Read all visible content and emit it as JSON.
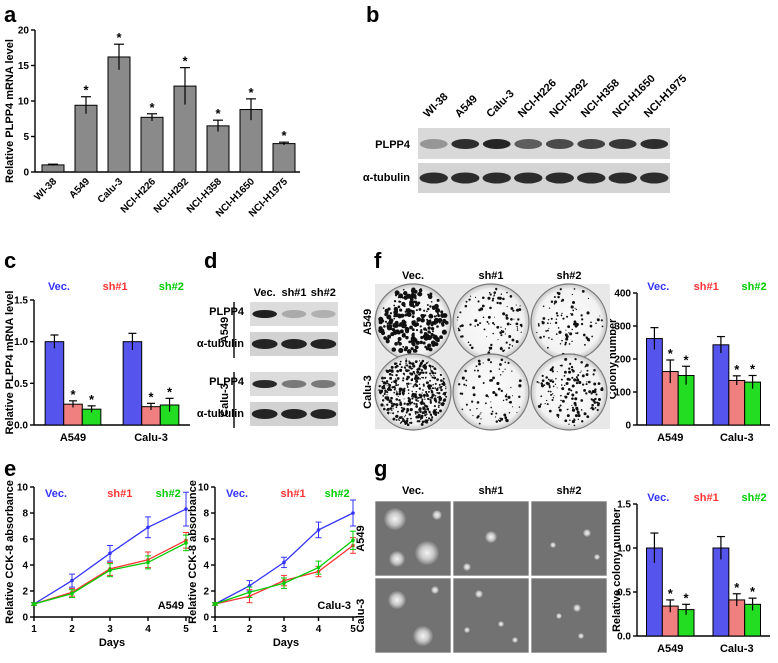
{
  "panel_labels": {
    "a": "a",
    "b": "b",
    "c": "c",
    "d": "d",
    "e": "e",
    "f": "f",
    "g": "g"
  },
  "colors": {
    "vec": "#3333ff",
    "sh1": "#ff3333",
    "sh2": "#00cc00",
    "bar_gray": "#8a8a8a",
    "bar_blue": "#5555ee",
    "bar_red": "#f08080",
    "bar_green": "#22dd22"
  },
  "chart_data": [
    {
      "id": "a",
      "type": "bar",
      "categories": [
        "WI-38",
        "A549",
        "Calu-3",
        "NCI-H226",
        "NCI-H292",
        "NCI-H358",
        "NCI-H1650",
        "NCI-H1975"
      ],
      "values": [
        1.0,
        9.4,
        16.2,
        7.7,
        12.1,
        6.5,
        8.8,
        4.0
      ],
      "errors": [
        0.1,
        1.2,
        1.8,
        0.5,
        2.6,
        0.8,
        1.5,
        0.2
      ],
      "sig": [
        "",
        "*",
        "*",
        "*",
        "*",
        "*",
        "*",
        "*"
      ],
      "ylabel": "Relative PLPP4 mRNA level",
      "ylim": [
        0,
        20
      ],
      "yticks": [
        "0",
        "5",
        "10",
        "15",
        "20"
      ]
    },
    {
      "id": "c",
      "type": "bar",
      "groups": [
        "A549",
        "Calu-3"
      ],
      "legend": [
        "Vec.",
        "sh#1",
        "sh#2"
      ],
      "series": [
        {
          "name": "Vec.",
          "values": [
            1.0,
            1.0
          ],
          "errors": [
            0.08,
            0.1
          ],
          "sig": [
            "",
            ""
          ]
        },
        {
          "name": "sh#1",
          "values": [
            0.25,
            0.22
          ],
          "errors": [
            0.04,
            0.04
          ],
          "sig": [
            "*",
            "*"
          ]
        },
        {
          "name": "sh#2",
          "values": [
            0.19,
            0.24
          ],
          "errors": [
            0.04,
            0.08
          ],
          "sig": [
            "*",
            "*"
          ]
        }
      ],
      "ylabel": "Relative PLPP4 mRNA level",
      "ylim": [
        0,
        1.5
      ],
      "yticks": [
        "0.0",
        "0.5",
        "1.0",
        "1.5"
      ]
    },
    {
      "id": "e1",
      "type": "line",
      "title": "A549",
      "legend": [
        "Vec.",
        "sh#1",
        "sh#2"
      ],
      "x": [
        1,
        2,
        3,
        4,
        5
      ],
      "series": [
        {
          "name": "Vec.",
          "values": [
            1.0,
            2.8,
            4.9,
            6.9,
            8.3
          ],
          "errors": [
            0.1,
            0.5,
            0.6,
            0.8,
            1.3
          ]
        },
        {
          "name": "sh#1",
          "values": [
            1.0,
            1.9,
            3.7,
            4.4,
            5.9
          ],
          "errors": [
            0.1,
            0.3,
            0.5,
            0.6,
            0.6
          ]
        },
        {
          "name": "sh#2",
          "values": [
            1.0,
            1.8,
            3.6,
            4.2,
            5.7
          ],
          "errors": [
            0.1,
            0.3,
            0.5,
            0.5,
            0.6
          ]
        }
      ],
      "xlabel": "Days",
      "ylabel": "Relative CCK-8 absorbance",
      "ylim": [
        0,
        10
      ],
      "yticks": [
        "0",
        "2",
        "4",
        "6",
        "8",
        "10"
      ],
      "xticks": [
        "1",
        "2",
        "3",
        "4",
        "5"
      ]
    },
    {
      "id": "e2",
      "type": "line",
      "title": "Calu-3",
      "legend": [
        "Vec.",
        "sh#1",
        "sh#2"
      ],
      "x": [
        1,
        2,
        3,
        4,
        5
      ],
      "series": [
        {
          "name": "Vec.",
          "values": [
            1.0,
            2.4,
            4.2,
            6.7,
            8.0
          ],
          "errors": [
            0.1,
            0.4,
            0.4,
            0.6,
            1.0
          ]
        },
        {
          "name": "sh#1",
          "values": [
            1.0,
            1.6,
            2.8,
            3.5,
            5.5
          ],
          "errors": [
            0.1,
            0.5,
            0.4,
            0.4,
            0.6
          ]
        },
        {
          "name": "sh#2",
          "values": [
            1.0,
            1.9,
            2.6,
            3.8,
            5.9
          ],
          "errors": [
            0.1,
            0.4,
            0.4,
            0.5,
            0.7
          ]
        }
      ],
      "xlabel": "Days",
      "ylabel": "Relative CCK-8 absorbance",
      "ylim": [
        0,
        10
      ],
      "yticks": [
        "0",
        "2",
        "4",
        "6",
        "8",
        "10"
      ],
      "xticks": [
        "1",
        "2",
        "3",
        "4",
        "5"
      ]
    },
    {
      "id": "f",
      "type": "bar",
      "groups": [
        "A549",
        "Calu-3"
      ],
      "legend": [
        "Vec.",
        "sh#1",
        "sh#2"
      ],
      "series": [
        {
          "name": "Vec.",
          "values": [
            262,
            243
          ],
          "errors": [
            33,
            25
          ],
          "sig": [
            "",
            ""
          ]
        },
        {
          "name": "sh#1",
          "values": [
            162,
            135
          ],
          "errors": [
            35,
            14
          ],
          "sig": [
            "*",
            "*"
          ]
        },
        {
          "name": "sh#2",
          "values": [
            150,
            130
          ],
          "errors": [
            28,
            20
          ],
          "sig": [
            "*",
            "*"
          ]
        }
      ],
      "ylabel": "Colony number",
      "ylim": [
        0,
        400
      ],
      "yticks": [
        "0",
        "100",
        "200",
        "300",
        "400"
      ]
    },
    {
      "id": "g",
      "type": "bar",
      "groups": [
        "A549",
        "Calu-3"
      ],
      "legend": [
        "Vec.",
        "sh#1",
        "sh#2"
      ],
      "series": [
        {
          "name": "Vec.",
          "values": [
            1.0,
            1.0
          ],
          "errors": [
            0.17,
            0.13
          ],
          "sig": [
            "",
            ""
          ]
        },
        {
          "name": "sh#1",
          "values": [
            0.34,
            0.41
          ],
          "errors": [
            0.07,
            0.07
          ],
          "sig": [
            "*",
            "*"
          ]
        },
        {
          "name": "sh#2",
          "values": [
            0.3,
            0.36
          ],
          "errors": [
            0.06,
            0.07
          ],
          "sig": [
            "*",
            "*"
          ]
        }
      ],
      "ylabel": "Relative colony number",
      "ylim": [
        0,
        1.5
      ],
      "yticks": [
        "0.0",
        "0.5",
        "1.0",
        "1.5"
      ]
    }
  ],
  "blot_b": {
    "lanes": [
      "WI-38",
      "A549",
      "Calu-3",
      "NCI-H226",
      "NCI-H292",
      "NCI-H358",
      "NCI-H1650",
      "NCI-H1975"
    ],
    "rows": [
      "PLPP4",
      "α-tubulin"
    ]
  },
  "blot_d": {
    "lanes": [
      "Vec.",
      "sh#1",
      "sh#2"
    ],
    "cells": [
      "A549",
      "Calu-3"
    ],
    "rows": [
      "PLPP4",
      "α-tubulin"
    ]
  },
  "panel_f": {
    "conditions": [
      "Vec.",
      "sh#1",
      "sh#2"
    ],
    "cells": [
      "A549",
      "Calu-3"
    ]
  },
  "panel_g": {
    "conditions": [
      "Vec.",
      "sh#1",
      "sh#2"
    ],
    "cells": [
      "A549",
      "Calu-3"
    ]
  }
}
